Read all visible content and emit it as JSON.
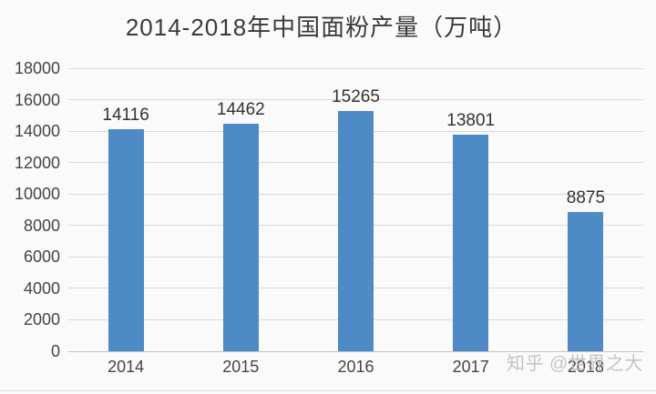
{
  "title": "2014-2018年中国面粉产量（万吨）",
  "watermark": "知乎 @世界之大",
  "colors": {
    "background": "#fbfafb",
    "bar": "#4e8bc6",
    "gridline": "#d9d9d9",
    "axis_line": "#c3c3c3",
    "title_text": "#3a3a3a",
    "axis_label_text": "#454545",
    "value_label_text": "#333333",
    "watermark_text": "#bfbdc2",
    "bottom_divider": "#dedede"
  },
  "chart_data": {
    "type": "bar",
    "title": "2014-2018年中国面粉产量（万吨）",
    "categories": [
      "2014",
      "2015",
      "2016",
      "2017",
      "2018"
    ],
    "values": [
      14116,
      14462,
      15265,
      13801,
      8875
    ],
    "value_labels_shown": true,
    "xlabel": "",
    "ylabel": "",
    "ylim": [
      0,
      18000
    ],
    "ytick_step": 2000,
    "yticks": [
      0,
      2000,
      4000,
      6000,
      8000,
      10000,
      12000,
      14000,
      16000,
      18000
    ],
    "grid": true,
    "legend": "none"
  }
}
